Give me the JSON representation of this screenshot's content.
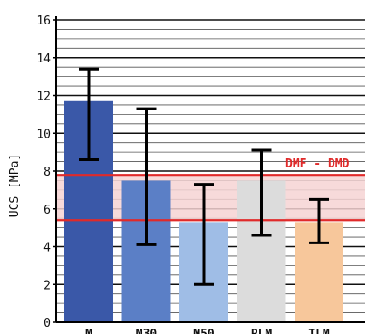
{
  "chart_data": {
    "type": "bar",
    "ylabel": "UCS [MPa]",
    "xlabel": "",
    "ylim": [
      0,
      16
    ],
    "yticks": [
      0,
      2,
      4,
      6,
      8,
      10,
      12,
      14,
      16
    ],
    "grid": "horizontal",
    "categories": [
      "M",
      "M30",
      "M50",
      "PLM",
      "TLM"
    ],
    "values": [
      11.7,
      7.5,
      5.3,
      7.5,
      5.3
    ],
    "error_low": [
      8.6,
      4.1,
      2.0,
      4.6,
      4.2
    ],
    "error_high": [
      13.4,
      11.3,
      7.3,
      9.1,
      6.5
    ],
    "colors": [
      "#3a58a8",
      "#5b7fc6",
      "#9fbde6",
      "#dcdcdc",
      "#f7c79b"
    ],
    "band": {
      "label": "DMF - DMD",
      "low": 5.4,
      "high": 7.8,
      "color": "#e02a2a",
      "fill": "#f6d3d3"
    }
  }
}
